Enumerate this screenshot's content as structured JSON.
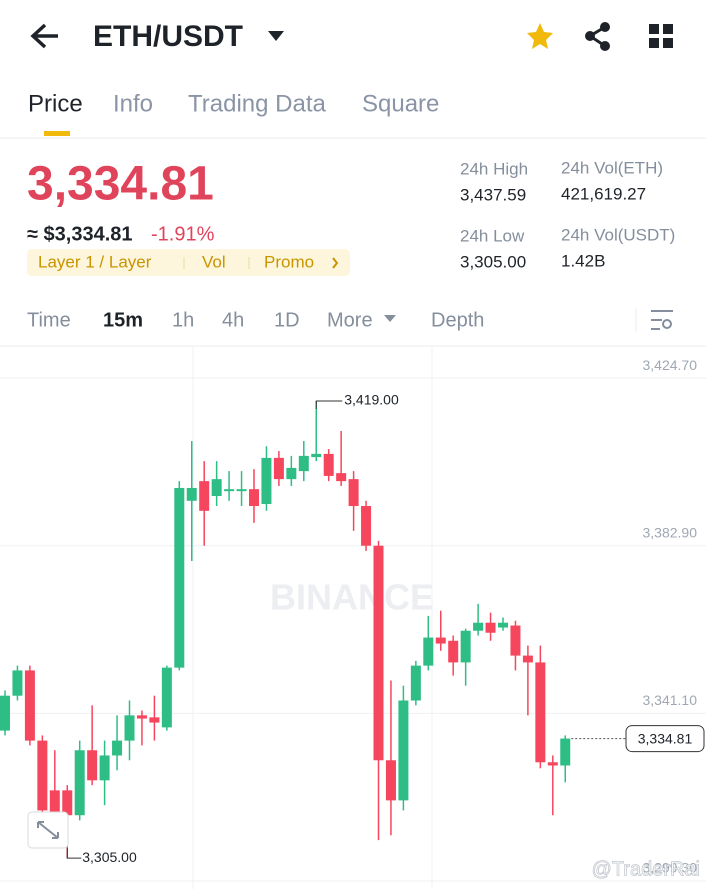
{
  "header": {
    "pair": "ETH/USDT"
  },
  "tabs": [
    "Price",
    "Info",
    "Trading Data",
    "Square"
  ],
  "price": {
    "last": "3,334.81",
    "approx": "≈ $3,334.81",
    "change": "-1.91%",
    "tags": [
      "Layer 1 / Layer",
      "Vol",
      "Promo"
    ]
  },
  "stats": [
    {
      "label": "24h High",
      "value": "3,437.59"
    },
    {
      "label": "24h Vol(ETH)",
      "value": "421,619.27"
    },
    {
      "label": "24h Low",
      "value": "3,305.00"
    },
    {
      "label": "24h Vol(USDT)",
      "value": "1.42B"
    }
  ],
  "intervals": [
    "Time",
    "15m",
    "1h",
    "4h",
    "1D",
    "More",
    "Depth"
  ],
  "watermarks": [
    "BINANCE",
    "@TraderRai"
  ],
  "chart_data": {
    "type": "candlestick",
    "up_color": "#2ebd85",
    "down_color": "#f6465d",
    "grid": true,
    "ylim": [
      3297.3,
      3432.7
    ],
    "yticks": [
      {
        "value": 3424.7,
        "label": "3,424.70"
      },
      {
        "value": 3382.9,
        "label": "3,382.90"
      },
      {
        "value": 3341.1,
        "label": "3,341.10"
      },
      {
        "value": 3299.3,
        "label": "3,299.30"
      }
    ],
    "open": [
      3336.8,
      3345.5,
      3351.8,
      3334.3,
      3321.9,
      3321.9,
      3315.7,
      3331.9,
      3324.4,
      3330.6,
      3334.3,
      3340.6,
      3340.1,
      3337.6,
      3352.5,
      3394.1,
      3399.0,
      3395.3,
      3396.5,
      3396.5,
      3397.0,
      3393.3,
      3404.8,
      3399.5,
      3401.5,
      3405.0,
      3405.8,
      3401.0,
      3399.5,
      3392.8,
      3382.9,
      3329.4,
      3319.4,
      3344.3,
      3353.0,
      3360.0,
      3359.2,
      3353.8,
      3361.7,
      3363.7,
      3362.5,
      3363.0,
      3355.5,
      3353.8,
      3328.9,
      3328.1
    ],
    "high": [
      3346.8,
      3353.0,
      3353.0,
      3335.6,
      3331.9,
      3323.2,
      3334.3,
      3343.1,
      3334.3,
      3340.6,
      3344.3,
      3341.8,
      3345.5,
      3353.0,
      3399.0,
      3409.0,
      3404.0,
      3404.0,
      3401.5,
      3401.5,
      3402.0,
      3407.7,
      3406.5,
      3405.3,
      3409.0,
      3419.0,
      3407.0,
      3411.5,
      3401.5,
      3394.1,
      3384.1,
      3349.3,
      3348.0,
      3354.2,
      3365.4,
      3366.7,
      3360.5,
      3362.2,
      3368.4,
      3366.2,
      3365.0,
      3364.2,
      3358.0,
      3358.0,
      3330.6,
      3335.6
    ],
    "low": [
      3335.6,
      3344.3,
      3333.1,
      3315.7,
      3311.9,
      3305.0,
      3314.4,
      3323.2,
      3318.2,
      3326.9,
      3329.4,
      3333.1,
      3334.3,
      3336.8,
      3351.8,
      3379.1,
      3382.9,
      3392.8,
      3394.1,
      3392.8,
      3388.6,
      3391.6,
      3397.8,
      3397.8,
      3399.0,
      3404.0,
      3399.0,
      3397.8,
      3386.6,
      3381.6,
      3309.5,
      3310.7,
      3316.9,
      3343.1,
      3351.8,
      3356.7,
      3350.5,
      3348.0,
      3360.5,
      3359.2,
      3361.7,
      3351.8,
      3340.6,
      3327.4,
      3315.7,
      3323.9
    ],
    "close": [
      3345.5,
      3351.8,
      3334.3,
      3316.9,
      3315.7,
      3315.7,
      3331.9,
      3324.4,
      3330.6,
      3334.3,
      3340.6,
      3339.8,
      3338.8,
      3352.5,
      3397.3,
      3397.3,
      3391.6,
      3399.5,
      3397.0,
      3397.0,
      3392.8,
      3404.8,
      3399.5,
      3402.3,
      3405.3,
      3405.8,
      3400.3,
      3399.0,
      3392.8,
      3382.9,
      3329.4,
      3319.4,
      3344.3,
      3353.0,
      3360.0,
      3358.5,
      3353.8,
      3361.7,
      3363.7,
      3361.2,
      3363.7,
      3355.5,
      3353.8,
      3328.9,
      3328.1,
      3334.81
    ],
    "annotations": [
      {
        "value": 3419.0,
        "label": "3,419.00",
        "index": 25
      },
      {
        "value": 3305.0,
        "label": "3,305.00",
        "index": 5
      },
      {
        "value": 3334.81,
        "label": "3,334.81",
        "index": 45
      }
    ]
  }
}
